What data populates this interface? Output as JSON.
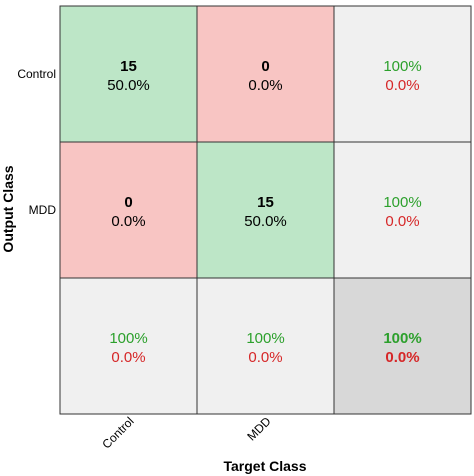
{
  "chart_data": {
    "type": "heatmap",
    "subtype": "confusion-matrix",
    "xlabel": "Target Class",
    "ylabel": "Output Class",
    "x_tick_labels": [
      "Control",
      "MDD"
    ],
    "y_tick_labels": [
      "Control",
      "MDD"
    ],
    "counts": [
      [
        15,
        0
      ],
      [
        0,
        15
      ]
    ],
    "percents": [
      [
        "50.0%",
        "0.0%"
      ],
      [
        "0.0%",
        "50.0%"
      ]
    ],
    "row_summary": [
      {
        "correct": "100%",
        "incorrect": "0.0%"
      },
      {
        "correct": "100%",
        "incorrect": "0.0%"
      }
    ],
    "col_summary": [
      {
        "correct": "100%",
        "incorrect": "0.0%"
      },
      {
        "correct": "100%",
        "incorrect": "0.0%"
      }
    ],
    "overall": {
      "correct": "100%",
      "incorrect": "0.0%"
    }
  },
  "colors": {
    "diagonal": "#bde6c7",
    "off_diagonal": "#f8c5c3",
    "summary": "#f0f0f0",
    "overall": "#d8d8d8",
    "correct_text": "#2ca02c",
    "incorrect_text": "#d62728",
    "border": "#333333"
  }
}
